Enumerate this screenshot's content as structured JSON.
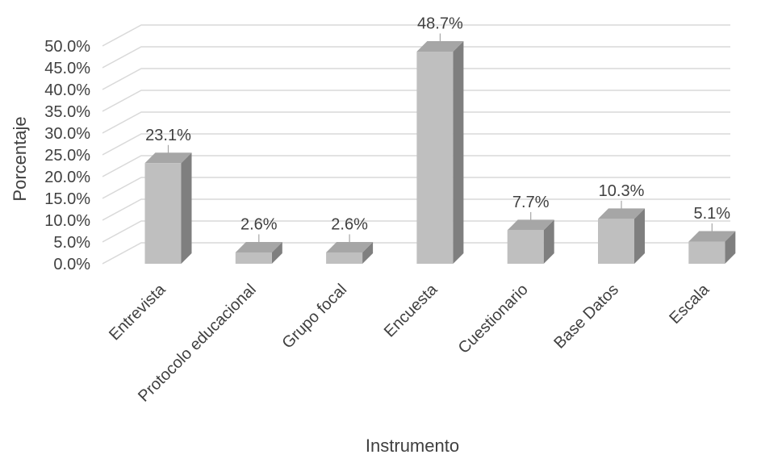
{
  "chart_data": {
    "type": "bar",
    "style": "3d-column",
    "title": "",
    "xlabel": "Instrumento",
    "ylabel": "Porcentaje",
    "ylim": [
      0,
      50
    ],
    "yticks": [
      "0.0%",
      "5.0%",
      "10.0%",
      "15.0%",
      "20.0%",
      "25.0%",
      "30.0%",
      "35.0%",
      "40.0%",
      "45.0%",
      "50.0%"
    ],
    "categories": [
      "Entrevista",
      "Protocolo educacional",
      "Grupo focal",
      "Encuesta",
      "Cuestionario",
      "Base Datos",
      "Escala"
    ],
    "values": [
      23.1,
      2.6,
      2.6,
      48.7,
      7.7,
      10.3,
      5.1
    ],
    "data_labels": [
      "23.1%",
      "2.6%",
      "2.6%",
      "48.7%",
      "7.7%",
      "10.3%",
      "5.1%"
    ],
    "grid": true,
    "legend": "none",
    "colors": {
      "bar_front": "#bfbfbf",
      "bar_top": "#a6a6a6",
      "bar_side": "#7f7f7f",
      "grid": "#d9d9d9",
      "text": "#404040"
    }
  }
}
